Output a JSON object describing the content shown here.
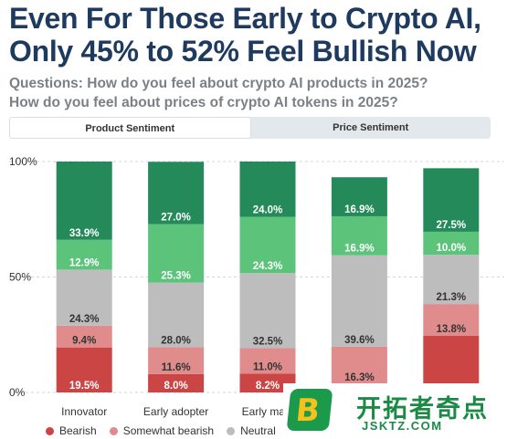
{
  "title": "Even For Those Early to Crypto AI, Only 45% to 52% Feel Bullish Now",
  "questions": [
    "Questions: How do you feel about crypto AI products in 2025?",
    "How do you feel about prices of crypto AI tokens in 2025?"
  ],
  "tabs": [
    {
      "label": "Product Sentiment",
      "active": true
    },
    {
      "label": "Price Sentiment",
      "active": false
    }
  ],
  "logo": {
    "glyph": "B",
    "name": "开拓者奇点",
    "url": "JSKTZ.COM"
  },
  "colors": {
    "bearish": "#cc4545",
    "somewhat_bearish": "#e08c8c",
    "neutral": "#bdbdbd",
    "somewhat_bullish": "#5cc47a",
    "bullish": "#258a5a",
    "grid": "#d6d6d6"
  },
  "chart_data": {
    "type": "bar",
    "stacked": true,
    "categories": [
      "Innovator",
      "Early adopter",
      "Early majo",
      "",
      ""
    ],
    "series": [
      {
        "name": "Bearish",
        "values": [
          19.5,
          8.0,
          8.2,
          3.5,
          24.5
        ]
      },
      {
        "name": "Somewhat bearish",
        "values": [
          9.4,
          11.6,
          11.0,
          16.3,
          13.8
        ]
      },
      {
        "name": "Neutral",
        "values": [
          24.3,
          28.0,
          32.5,
          39.6,
          21.3
        ]
      },
      {
        "name": "",
        "values": [
          12.9,
          25.3,
          24.3,
          16.9,
          10.0
        ]
      },
      {
        "name": "",
        "values": [
          33.9,
          27.0,
          24.0,
          16.9,
          27.5
        ]
      }
    ],
    "labels": [
      [
        "19.5%",
        "9.4%",
        "24.3%",
        "12.9%",
        "33.9%"
      ],
      [
        "8.0%",
        "11.6%",
        "28.0%",
        "25.3%",
        "27.0%"
      ],
      [
        "8.2%",
        "11.0%",
        "32.5%",
        "24.3%",
        "24.0%"
      ],
      [
        "",
        "16.3%",
        "39.6%",
        "16.9%",
        "16.9%"
      ],
      [
        "",
        "13.8%",
        "21.3%",
        "10.0%",
        "27.5%"
      ]
    ],
    "yticks": [
      "0%",
      "50%",
      "100%"
    ],
    "ylim": [
      0,
      100
    ],
    "grid": true,
    "legend": "bottom"
  }
}
